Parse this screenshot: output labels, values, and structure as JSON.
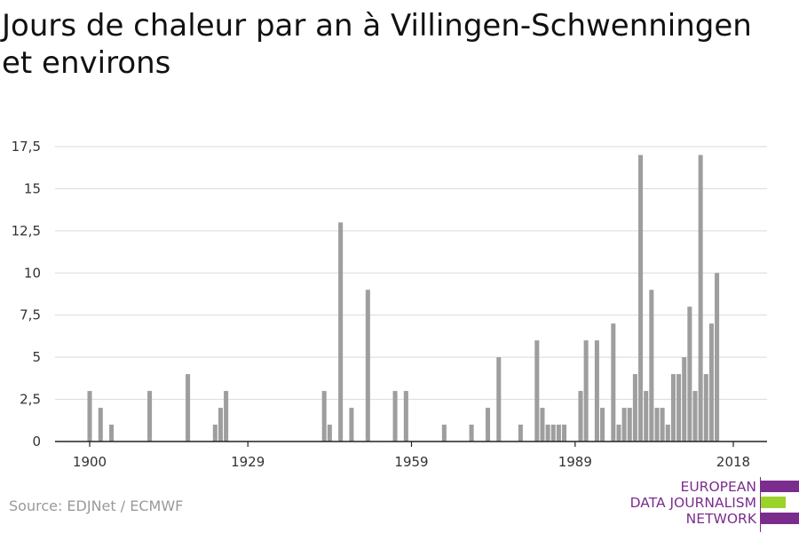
{
  "title": "Jours de chaleur par an à Villingen-Schwenningen et environs",
  "source": "Source: EDJNet / ECMWF",
  "logo": {
    "lines": [
      "EUROPEAN",
      "DATA JOURNALISM",
      "NETWORK"
    ],
    "colors": {
      "purple": "#7b2d8e",
      "green": "#9bd32a"
    }
  },
  "chart_data": {
    "type": "bar",
    "title": "",
    "xlabel": "",
    "ylabel": "",
    "ylim": [
      0,
      17.5
    ],
    "yticks": [
      "0",
      "2,5",
      "5",
      "7,5",
      "10",
      "12,5",
      "15",
      "17,5"
    ],
    "ytick_values": [
      0,
      2.5,
      5,
      7.5,
      10,
      12.5,
      15,
      17.5
    ],
    "xticks": [
      1900,
      1929,
      1959,
      1989,
      2018
    ],
    "xlim": [
      1900,
      2018
    ],
    "grid": true,
    "bar_color": "#9e9e9e",
    "x": [
      1900,
      1902,
      1904,
      1911,
      1918,
      1923,
      1924,
      1925,
      1943,
      1944,
      1946,
      1948,
      1951,
      1956,
      1958,
      1965,
      1970,
      1973,
      1975,
      1979,
      1982,
      1983,
      1984,
      1985,
      1986,
      1987,
      1990,
      1991,
      1993,
      1994,
      1996,
      1997,
      1998,
      1999,
      2000,
      2001,
      2002,
      2003,
      2004,
      2005,
      2006,
      2007,
      2008,
      2009,
      2010,
      2011,
      2012,
      2013,
      2014,
      2015,
      2016,
      2017,
      2018
    ],
    "values": [
      3,
      2,
      1,
      3,
      4,
      1,
      2,
      3,
      3,
      1,
      13,
      2,
      9,
      3,
      3,
      1,
      1,
      2,
      5,
      1,
      6,
      2,
      1,
      1,
      1,
      1,
      3,
      6,
      6,
      2,
      7,
      1,
      2,
      2,
      4,
      17,
      3,
      9,
      2,
      2,
      1,
      4,
      4,
      5,
      8,
      3,
      17,
      4,
      7,
      10,
      null,
      null,
      null
    ]
  }
}
